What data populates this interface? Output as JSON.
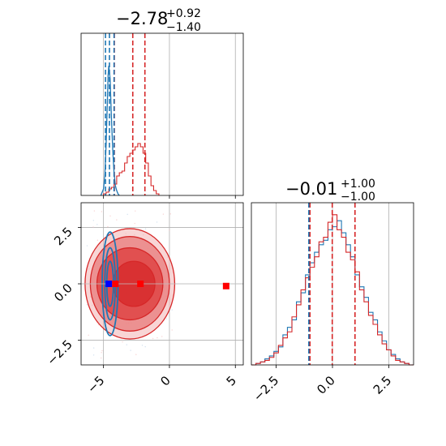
{
  "chart_data": {
    "type": "corner",
    "colors": {
      "red": "#d62728",
      "blue": "#1f77b4",
      "marker_red": "#ff0000",
      "marker_blue": "#0000ff",
      "grid": "#b0b0b0"
    },
    "param1": {
      "title_main": "−2.78",
      "title_sup": "+0.92",
      "title_sub": "−1.40",
      "xlim": [
        -6.7,
        5.6
      ],
      "ticks": [
        -5,
        0,
        5
      ],
      "tick_labels": [
        "−5",
        "0",
        "5"
      ],
      "red_quantiles": [
        -4.18,
        -2.78,
        -1.86
      ],
      "blue_quantiles": [
        -4.85,
        -4.55,
        -4.2
      ],
      "red_hist": {
        "x": [
          -5.0,
          -4.8,
          -4.6,
          -4.4,
          -4.2,
          -4.0,
          -3.8,
          -3.6,
          -3.4,
          -3.2,
          -3.0,
          -2.8,
          -2.6,
          -2.4,
          -2.2,
          -2.0,
          -1.8,
          -1.6,
          -1.4,
          -1.2,
          -1.0
        ],
        "y": [
          0.01,
          0.02,
          0.04,
          0.05,
          0.07,
          0.12,
          0.14,
          0.15,
          0.2,
          0.24,
          0.26,
          0.28,
          0.3,
          0.32,
          0.3,
          0.26,
          0.2,
          0.12,
          0.06,
          0.03,
          0.01
        ]
      },
      "blue_curve": {
        "x": [
          -5.2,
          -5.0,
          -4.9,
          -4.8,
          -4.7,
          -4.65,
          -4.6,
          -4.55,
          -4.5,
          -4.45,
          -4.4,
          -4.3,
          -4.2,
          -4.1,
          -4.0,
          -3.9,
          -3.8
        ],
        "y": [
          0.0,
          0.04,
          0.12,
          0.32,
          0.6,
          0.74,
          0.8,
          0.76,
          0.72,
          0.6,
          0.48,
          0.28,
          0.14,
          0.06,
          0.03,
          0.01,
          0.0
        ]
      }
    },
    "param2": {
      "title_main": "−0.01",
      "title_sup": "+1.00",
      "title_sub": "−1.00",
      "xlim": [
        -3.6,
        3.6
      ],
      "ticks": [
        -2.5,
        0,
        2.5
      ],
      "tick_labels": [
        "−2.5",
        "0.0",
        "2.5"
      ],
      "red_quantiles": [
        -1.0,
        -0.01,
        1.0
      ],
      "blue_quantiles": [
        -1.05
      ],
      "red_hist": {
        "x": [
          -3.6,
          -3.4,
          -3.2,
          -3.0,
          -2.8,
          -2.6,
          -2.4,
          -2.2,
          -2.0,
          -1.8,
          -1.6,
          -1.4,
          -1.2,
          -1.0,
          -0.8,
          -0.6,
          -0.4,
          -0.2,
          0.0,
          0.2,
          0.4,
          0.6,
          0.8,
          1.0,
          1.2,
          1.4,
          1.6,
          1.8,
          2.0,
          2.2,
          2.4,
          2.6,
          2.8,
          3.0,
          3.2,
          3.4
        ],
        "y": [
          0.0,
          0.01,
          0.02,
          0.03,
          0.05,
          0.08,
          0.13,
          0.18,
          0.22,
          0.32,
          0.4,
          0.5,
          0.58,
          0.65,
          0.72,
          0.82,
          0.85,
          0.95,
          1.0,
          0.9,
          0.85,
          0.75,
          0.7,
          0.62,
          0.5,
          0.42,
          0.33,
          0.27,
          0.2,
          0.14,
          0.1,
          0.06,
          0.03,
          0.02,
          0.01,
          0.0
        ]
      },
      "blue_hist": {
        "x": [
          -3.6,
          -3.4,
          -3.2,
          -3.0,
          -2.8,
          -2.6,
          -2.4,
          -2.2,
          -2.0,
          -1.8,
          -1.6,
          -1.4,
          -1.2,
          -1.0,
          -0.8,
          -0.6,
          -0.4,
          -0.2,
          0.0,
          0.2,
          0.4,
          0.6,
          0.8,
          1.0,
          1.2,
          1.4,
          1.6,
          1.8,
          2.0,
          2.2,
          2.4,
          2.6,
          2.8,
          3.0,
          3.2,
          3.4
        ],
        "y": [
          0.0,
          0.01,
          0.02,
          0.04,
          0.06,
          0.09,
          0.12,
          0.2,
          0.25,
          0.3,
          0.42,
          0.48,
          0.6,
          0.68,
          0.75,
          0.8,
          0.83,
          0.9,
          0.92,
          0.96,
          0.88,
          0.8,
          0.72,
          0.6,
          0.52,
          0.45,
          0.35,
          0.3,
          0.22,
          0.16,
          0.1,
          0.07,
          0.04,
          0.02,
          0.01,
          0.0
        ]
      }
    },
    "joint": {
      "xlim": [
        -6.7,
        5.6
      ],
      "ylim": [
        -3.6,
        3.6
      ],
      "yticks": [
        -2.5,
        0,
        2.5
      ],
      "ytick_labels": [
        "−2.5",
        "0.0",
        "2.5"
      ],
      "red_contours": [
        {
          "cx": -3.0,
          "cy": 0.0,
          "rx": 3.4,
          "ry": 2.45
        },
        {
          "cx": -3.0,
          "cy": 0.0,
          "rx": 3.0,
          "ry": 2.1
        },
        {
          "cx": -3.0,
          "cy": 0.0,
          "rx": 2.5,
          "ry": 1.6
        },
        {
          "cx": -2.7,
          "cy": 0.0,
          "rx": 1.6,
          "ry": 1.0
        }
      ],
      "blue_contours": [
        {
          "cx": -4.5,
          "cy": 0.0,
          "rx": 0.6,
          "ry": 2.3
        },
        {
          "cx": -4.5,
          "cy": 0.0,
          "rx": 0.4,
          "ry": 1.6
        },
        {
          "cx": -4.5,
          "cy": 0.0,
          "rx": 0.25,
          "ry": 1.0
        }
      ],
      "red_markers": [
        {
          "x": -4.1,
          "y": 0.0
        },
        {
          "x": -2.2,
          "y": 0.0
        },
        {
          "x": 4.3,
          "y": -0.1
        }
      ],
      "blue_markers": [
        {
          "x": -4.6,
          "y": 0.0
        }
      ]
    }
  }
}
